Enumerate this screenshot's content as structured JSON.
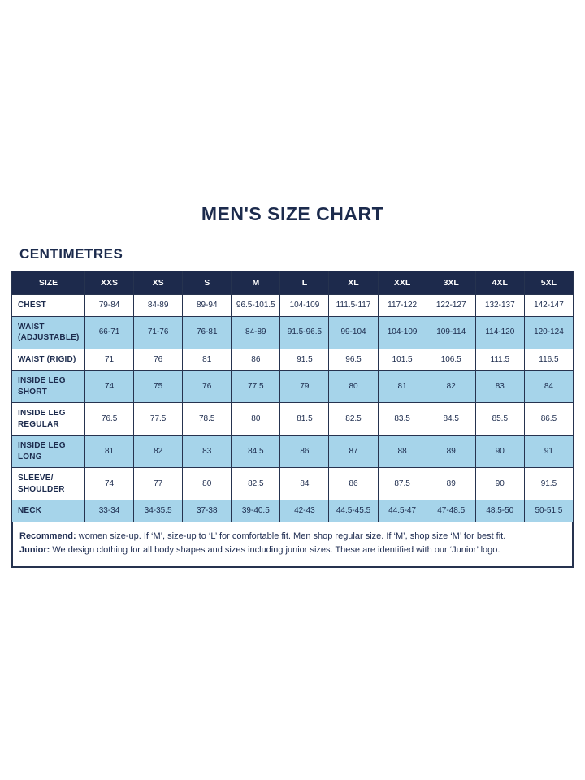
{
  "page": {
    "title": "MEN'S SIZE CHART",
    "unit_label": "CENTIMETRES"
  },
  "table": {
    "columns": [
      "SIZE",
      "XXS",
      "XS",
      "S",
      "M",
      "L",
      "XL",
      "XXL",
      "3XL",
      "4XL",
      "5XL"
    ],
    "rows": [
      {
        "label": "CHEST",
        "values": [
          "79-84",
          "84-89",
          "89-94",
          "96.5-101.5",
          "104-109",
          "111.5-117",
          "117-122",
          "122-127",
          "132-137",
          "142-147"
        ]
      },
      {
        "label": "WAIST (ADJUSTABLE)",
        "values": [
          "66-71",
          "71-76",
          "76-81",
          "84-89",
          "91.5-96.5",
          "99-104",
          "104-109",
          "109-114",
          "114-120",
          "120-124"
        ]
      },
      {
        "label": "WAIST (RIGID)",
        "values": [
          "71",
          "76",
          "81",
          "86",
          "91.5",
          "96.5",
          "101.5",
          "106.5",
          "111.5",
          "116.5"
        ]
      },
      {
        "label": "INSIDE LEG SHORT",
        "values": [
          "74",
          "75",
          "76",
          "77.5",
          "79",
          "80",
          "81",
          "82",
          "83",
          "84"
        ]
      },
      {
        "label": "INSIDE LEG REGULAR",
        "values": [
          "76.5",
          "77.5",
          "78.5",
          "80",
          "81.5",
          "82.5",
          "83.5",
          "84.5",
          "85.5",
          "86.5"
        ]
      },
      {
        "label": "INSIDE LEG LONG",
        "values": [
          "81",
          "82",
          "83",
          "84.5",
          "86",
          "87",
          "88",
          "89",
          "90",
          "91"
        ]
      },
      {
        "label": "SLEEVE/ SHOULDER",
        "values": [
          "74",
          "77",
          "80",
          "82.5",
          "84",
          "86",
          "87.5",
          "89",
          "90",
          "91.5"
        ]
      },
      {
        "label": "NECK",
        "values": [
          "33-34",
          "34-35.5",
          "37-38",
          "39-40.5",
          "42-43",
          "44.5-45.5",
          "44.5-47",
          "47-48.5",
          "48.5-50",
          "50-51.5"
        ]
      }
    ]
  },
  "footer": {
    "recommend_label": "Recommend:",
    "recommend_text": " women size-up. If ‘M’, size-up to ‘L’ for comfortable fit. Men shop regular size. If ‘M’, shop size ‘M’ for best fit.",
    "junior_label": "Junior:",
    "junior_text": " We design clothing for all body shapes and sizes including junior sizes. These are identified with our ‘Junior’ logo."
  }
}
